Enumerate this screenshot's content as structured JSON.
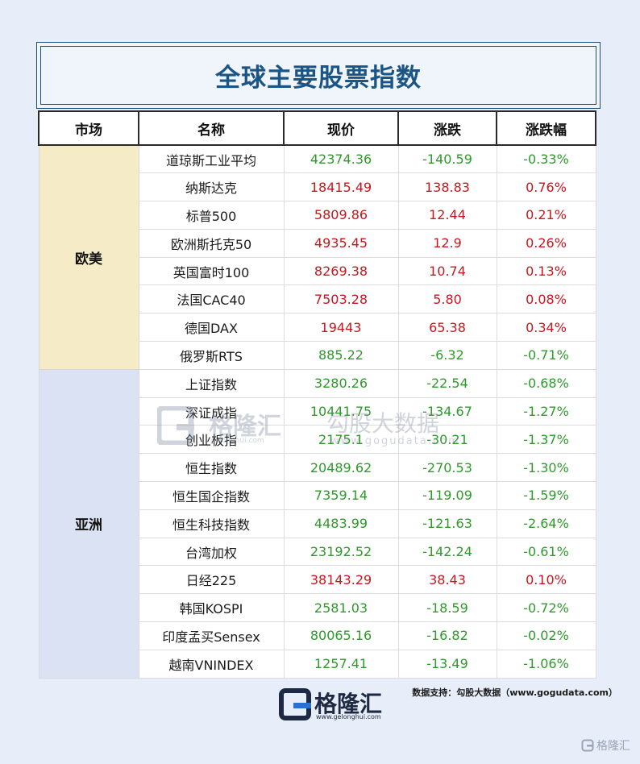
{
  "title": "全球主要股票指数",
  "headers": [
    "市场",
    "名称",
    "现价",
    "涨跌",
    "涨跌幅"
  ],
  "groups": [
    {
      "market": "欧美",
      "rows": [
        {
          "name": "道琼斯工业平均",
          "price": "42374.36",
          "change": "-140.59",
          "pct": "-0.33%",
          "dir": "down"
        },
        {
          "name": "纳斯达克",
          "price": "18415.49",
          "change": "138.83",
          "pct": "0.76%",
          "dir": "up"
        },
        {
          "name": "标普500",
          "price": "5809.86",
          "change": "12.44",
          "pct": "0.21%",
          "dir": "up"
        },
        {
          "name": "欧洲斯托克50",
          "price": "4935.45",
          "change": "12.9",
          "pct": "0.26%",
          "dir": "up"
        },
        {
          "name": "英国富时100",
          "price": "8269.38",
          "change": "10.74",
          "pct": "0.13%",
          "dir": "up"
        },
        {
          "name": "法国CAC40",
          "price": "7503.28",
          "change": "5.80",
          "pct": "0.08%",
          "dir": "up"
        },
        {
          "name": "德国DAX",
          "price": "19443",
          "change": "65.38",
          "pct": "0.34%",
          "dir": "up"
        },
        {
          "name": "俄罗斯RTS",
          "price": "885.22",
          "change": "-6.32",
          "pct": "-0.71%",
          "dir": "down"
        }
      ]
    },
    {
      "market": "亚洲",
      "rows": [
        {
          "name": "上证指数",
          "price": "3280.26",
          "change": "-22.54",
          "pct": "-0.68%",
          "dir": "down"
        },
        {
          "name": "深证成指",
          "price": "10441.75",
          "change": "-134.67",
          "pct": "-1.27%",
          "dir": "down"
        },
        {
          "name": "创业板指",
          "price": "2175.1",
          "change": "-30.21",
          "pct": "-1.37%",
          "dir": "down"
        },
        {
          "name": "恒生指数",
          "price": "20489.62",
          "change": "-270.53",
          "pct": "-1.30%",
          "dir": "down"
        },
        {
          "name": "恒生国企指数",
          "price": "7359.14",
          "change": "-119.09",
          "pct": "-1.59%",
          "dir": "down"
        },
        {
          "name": "恒生科技指数",
          "price": "4483.99",
          "change": "-121.63",
          "pct": "-2.64%",
          "dir": "down"
        },
        {
          "name": "台湾加权",
          "price": "23192.52",
          "change": "-142.24",
          "pct": "-0.61%",
          "dir": "down"
        },
        {
          "name": "日经225",
          "price": "38143.29",
          "change": "38.43",
          "pct": "0.10%",
          "dir": "up"
        },
        {
          "name": "韩国KOSPI",
          "price": "2581.03",
          "change": "-18.59",
          "pct": "-0.72%",
          "dir": "down"
        },
        {
          "name": "印度孟买Sensex",
          "price": "80065.16",
          "change": "-16.82",
          "pct": "-0.02%",
          "dir": "down"
        },
        {
          "name": "越南VNINDEX",
          "price": "1257.41",
          "change": "-13.49",
          "pct": "-1.06%",
          "dir": "down"
        }
      ]
    }
  ],
  "colors": {
    "up": "#c8161e",
    "down": "#2d9a2a",
    "title": "#1a5585",
    "west_bg": "#f5ebc7",
    "asia_bg": "#dbe2f3"
  },
  "watermark": {
    "brand": "格隆汇",
    "brand_sub": "gelonghui.com",
    "partner": "勾股大数据",
    "partner_sub": "www.gogudata.com"
  },
  "source_note": "数据支持：勾股大数据（www.gogudata.com）",
  "footer_logo": {
    "text": "格隆汇",
    "sub": "www.gelonghui.com"
  },
  "corner_mark": {
    "icon": "gelonghui-logo-icon",
    "text": "格隆汇"
  }
}
